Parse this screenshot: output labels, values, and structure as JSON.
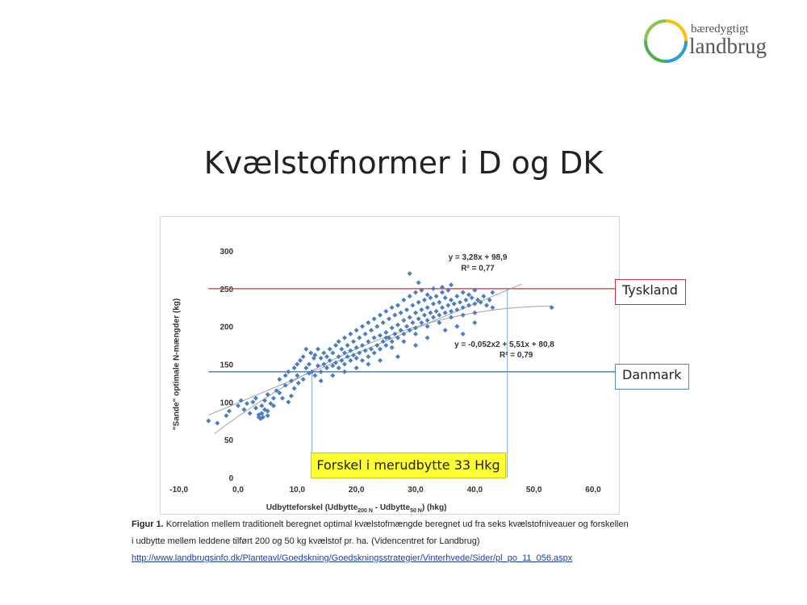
{
  "logo": {
    "top_text": "bæredygtigt",
    "main_text": "landbrug"
  },
  "title": "Kvælstofnormer i D og DK",
  "labels": {
    "tyskland": "Tyskland",
    "danmark": "Danmark",
    "forskel": "Forskel i merudbytte 33 Hkg"
  },
  "caption": {
    "figure_label": "Figur 1.",
    "line1": "Korrelation mellem traditionelt beregnet optimal kvælstofmængde beregnet ud fra seks kvælstofniveauer og forskellen",
    "line2": "i udbytte mellem leddene tilført 200 og 50 kg kvælstof pr. ha.  (Videncentret for Landbrug)",
    "link": "http://www.landbrugsinfo.dk/Planteavl/Goedskning/Goedskningsstrategier/Vinterhvede/Sider/pl_po_11_056.aspx"
  },
  "chart_data": {
    "type": "scatter",
    "ylabel": "\"Sande\" optimale N-mængder (kg)",
    "xlabel_parts": [
      "Udbytteforskel (Udbytte",
      "200 N",
      " - Udbytte",
      "50 N",
      ") (hkg)"
    ],
    "xlim": [
      -10,
      60
    ],
    "ylim": [
      0,
      300
    ],
    "x_ticks": [
      "-10,0",
      "0,0",
      "10,0",
      "20,0",
      "30,0",
      "40,0",
      "50,0",
      "60,0"
    ],
    "y_ticks": [
      "0",
      "50",
      "100",
      "150",
      "200",
      "250",
      "300"
    ],
    "annotations": {
      "linear_eq": "y = 3,28x + 98,9",
      "linear_r2": "R² = 0,77",
      "poly_eq": "y = -0,052x2 + 5,51x + 80,8",
      "poly_r2": "R² = 0,79"
    },
    "reference_lines": [
      {
        "name": "Tyskland",
        "y": 250,
        "color": "#d9534f"
      },
      {
        "name": "Danmark",
        "y": 140,
        "color": "#4f81bd"
      }
    ],
    "bracket_x": [
      12.5,
      45.5
    ],
    "colors": {
      "points": "#4a7ec2",
      "trend": "#9a9a9a",
      "bracket": "#7fa7d3"
    },
    "points": [
      [
        -5,
        75
      ],
      [
        -3.5,
        72
      ],
      [
        -2,
        82
      ],
      [
        -1.5,
        88
      ],
      [
        0,
        95
      ],
      [
        0.5,
        102
      ],
      [
        1,
        90
      ],
      [
        1.5,
        98
      ],
      [
        2,
        85
      ],
      [
        2.5,
        100
      ],
      [
        3,
        92
      ],
      [
        3,
        105
      ],
      [
        3.5,
        80
      ],
      [
        3.8,
        78
      ],
      [
        4,
        85
      ],
      [
        4,
        95
      ],
      [
        4.2,
        80
      ],
      [
        4.5,
        90
      ],
      [
        4.5,
        102
      ],
      [
        5,
        82
      ],
      [
        5,
        110
      ],
      [
        5.5,
        98
      ],
      [
        6,
        105
      ],
      [
        6.5,
        115
      ],
      [
        7,
        112
      ],
      [
        7,
        130
      ],
      [
        7.5,
        105
      ],
      [
        8,
        122
      ],
      [
        8,
        135
      ],
      [
        8.5,
        100
      ],
      [
        8.5,
        140
      ],
      [
        9,
        108
      ],
      [
        9,
        128
      ],
      [
        9.5,
        118
      ],
      [
        9.5,
        145
      ],
      [
        10,
        135
      ],
      [
        10,
        150
      ],
      [
        10.2,
        125
      ],
      [
        10.5,
        155
      ],
      [
        11,
        130
      ],
      [
        11,
        160
      ],
      [
        11.5,
        145
      ],
      [
        11.5,
        170
      ],
      [
        12,
        138
      ],
      [
        12,
        150
      ],
      [
        12.3,
        165
      ],
      [
        12.5,
        140
      ],
      [
        12.8,
        158
      ],
      [
        13,
        135
      ],
      [
        13,
        162
      ],
      [
        13.5,
        148
      ],
      [
        13.5,
        170
      ],
      [
        14,
        140
      ],
      [
        14,
        158
      ],
      [
        14.5,
        150
      ],
      [
        14.5,
        165
      ],
      [
        15,
        145
      ],
      [
        15,
        160
      ],
      [
        15.5,
        155
      ],
      [
        15.5,
        170
      ],
      [
        16,
        148
      ],
      [
        16,
        165
      ],
      [
        16.5,
        152
      ],
      [
        16.5,
        175
      ],
      [
        17,
        145
      ],
      [
        17,
        160
      ],
      [
        17,
        180
      ],
      [
        17.5,
        155
      ],
      [
        17.5,
        170
      ],
      [
        18,
        150
      ],
      [
        18,
        165
      ],
      [
        18,
        185
      ],
      [
        18.5,
        160
      ],
      [
        18.5,
        175
      ],
      [
        19,
        155
      ],
      [
        19,
        168
      ],
      [
        19,
        190
      ],
      [
        19.5,
        162
      ],
      [
        19.5,
        180
      ],
      [
        20,
        158
      ],
      [
        20,
        172
      ],
      [
        20,
        195
      ],
      [
        20.5,
        165
      ],
      [
        20.5,
        185
      ],
      [
        21,
        155
      ],
      [
        21,
        175
      ],
      [
        21,
        200
      ],
      [
        21.5,
        168
      ],
      [
        21.5,
        190
      ],
      [
        22,
        160
      ],
      [
        22,
        180
      ],
      [
        22,
        205
      ],
      [
        22.5,
        170
      ],
      [
        22.5,
        195
      ],
      [
        23,
        165
      ],
      [
        23,
        185
      ],
      [
        23,
        210
      ],
      [
        23.5,
        175
      ],
      [
        23.5,
        200
      ],
      [
        24,
        170
      ],
      [
        24,
        188
      ],
      [
        24,
        215
      ],
      [
        24.5,
        180
      ],
      [
        24.5,
        205
      ],
      [
        25,
        175
      ],
      [
        25,
        192
      ],
      [
        25,
        220
      ],
      [
        25.5,
        185
      ],
      [
        25.5,
        210
      ],
      [
        26,
        180
      ],
      [
        26,
        198
      ],
      [
        26,
        225
      ],
      [
        26.5,
        190
      ],
      [
        26.5,
        215
      ],
      [
        27,
        185
      ],
      [
        27,
        202
      ],
      [
        27,
        228
      ],
      [
        27.5,
        195
      ],
      [
        27.5,
        218
      ],
      [
        28,
        190
      ],
      [
        28,
        208
      ],
      [
        28,
        235
      ],
      [
        28.5,
        200
      ],
      [
        28.5,
        222
      ],
      [
        29,
        195
      ],
      [
        29,
        212
      ],
      [
        29,
        240
      ],
      [
        29.5,
        205
      ],
      [
        29.5,
        228
      ],
      [
        30,
        198
      ],
      [
        30,
        218
      ],
      [
        30,
        245
      ],
      [
        30.5,
        210
      ],
      [
        30.5,
        232
      ],
      [
        31,
        205
      ],
      [
        31,
        222
      ],
      [
        31,
        248
      ],
      [
        31.5,
        215
      ],
      [
        31.5,
        235
      ],
      [
        32,
        208
      ],
      [
        32,
        225
      ],
      [
        32,
        242
      ],
      [
        32.5,
        218
      ],
      [
        32.5,
        238
      ],
      [
        33,
        212
      ],
      [
        33,
        230
      ],
      [
        33,
        250
      ],
      [
        33.5,
        220
      ],
      [
        33.5,
        240
      ],
      [
        34,
        215
      ],
      [
        34,
        232
      ],
      [
        34.5,
        225
      ],
      [
        34.5,
        245
      ],
      [
        35,
        218
      ],
      [
        35,
        238
      ],
      [
        35.5,
        228
      ],
      [
        35.5,
        248
      ],
      [
        36,
        220
      ],
      [
        36,
        235
      ],
      [
        36.5,
        230
      ],
      [
        37,
        222
      ],
      [
        37,
        240
      ],
      [
        37.5,
        232
      ],
      [
        38,
        225
      ],
      [
        38,
        245
      ],
      [
        38.5,
        235
      ],
      [
        39,
        228
      ],
      [
        39,
        242
      ],
      [
        39.5,
        238
      ],
      [
        40,
        230
      ],
      [
        40,
        248
      ],
      [
        40.5,
        235
      ],
      [
        41,
        232
      ],
      [
        41.5,
        240
      ],
      [
        42,
        228
      ],
      [
        42.5,
        235
      ],
      [
        43,
        245
      ],
      [
        43,
        225
      ],
      [
        29,
        270
      ],
      [
        30.5,
        258
      ],
      [
        34.5,
        252
      ],
      [
        36,
        255
      ],
      [
        25,
        185
      ],
      [
        26,
        172
      ],
      [
        28,
        180
      ],
      [
        30,
        190
      ],
      [
        32,
        200
      ],
      [
        34,
        205
      ],
      [
        36,
        212
      ],
      [
        38,
        215
      ],
      [
        40,
        218
      ],
      [
        38,
        190
      ],
      [
        40,
        205
      ],
      [
        27,
        160
      ],
      [
        24,
        155
      ],
      [
        22,
        150
      ],
      [
        20,
        145
      ],
      [
        18,
        140
      ],
      [
        16,
        135
      ],
      [
        14,
        128
      ],
      [
        3.5,
        83
      ],
      [
        5,
        88
      ],
      [
        6,
        95
      ],
      [
        30,
        175
      ],
      [
        32,
        185
      ],
      [
        35,
        195
      ],
      [
        37,
        200
      ],
      [
        53,
        225
      ]
    ]
  }
}
